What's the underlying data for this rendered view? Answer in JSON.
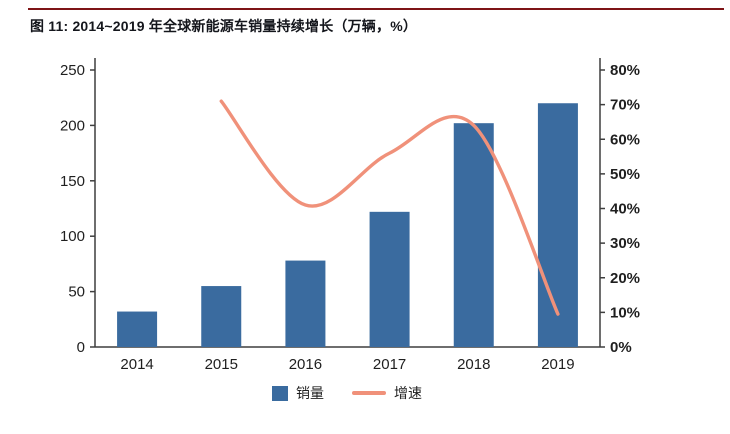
{
  "title": "图 11: 2014~2019 年全球新能源车销量持续增长（万辆，%）",
  "colors": {
    "bar": "#3a6b9f",
    "line": "#f0917a",
    "top_rule": "#7e1416",
    "axis": "#3f3f3f",
    "text": "#1f1f1f"
  },
  "legend": {
    "items": [
      {
        "label": "销量",
        "swatch": "bar"
      },
      {
        "label": "增速",
        "swatch": "line"
      }
    ]
  },
  "chart_data": {
    "type": "bar+line",
    "title": "图 11: 2014~2019 年全球新能源车销量持续增长（万辆，%）",
    "categories": [
      "2014",
      "2015",
      "2016",
      "2017",
      "2018",
      "2019"
    ],
    "series": [
      {
        "name": "销量",
        "type": "bar",
        "axis": "left",
        "values": [
          32,
          55,
          78,
          122,
          202,
          220
        ]
      },
      {
        "name": "增速",
        "type": "line",
        "axis": "right",
        "values_pct": [
          null,
          71,
          41,
          56,
          64,
          9.5
        ]
      }
    ],
    "left_axis": {
      "label": "",
      "min": 0,
      "max": 250,
      "tick_step": 50,
      "ticks": [
        0,
        50,
        100,
        150,
        200,
        250
      ]
    },
    "right_axis": {
      "label": "",
      "min": 0,
      "max": 80,
      "tick_step": 10,
      "ticks_pct": [
        0,
        10,
        20,
        30,
        40,
        50,
        60,
        70,
        80
      ],
      "tick_labels": [
        "0%",
        "10%",
        "20%",
        "30%",
        "40%",
        "50%",
        "60%",
        "70%",
        "80%"
      ]
    },
    "grid": false,
    "legend_position": "bottom"
  }
}
